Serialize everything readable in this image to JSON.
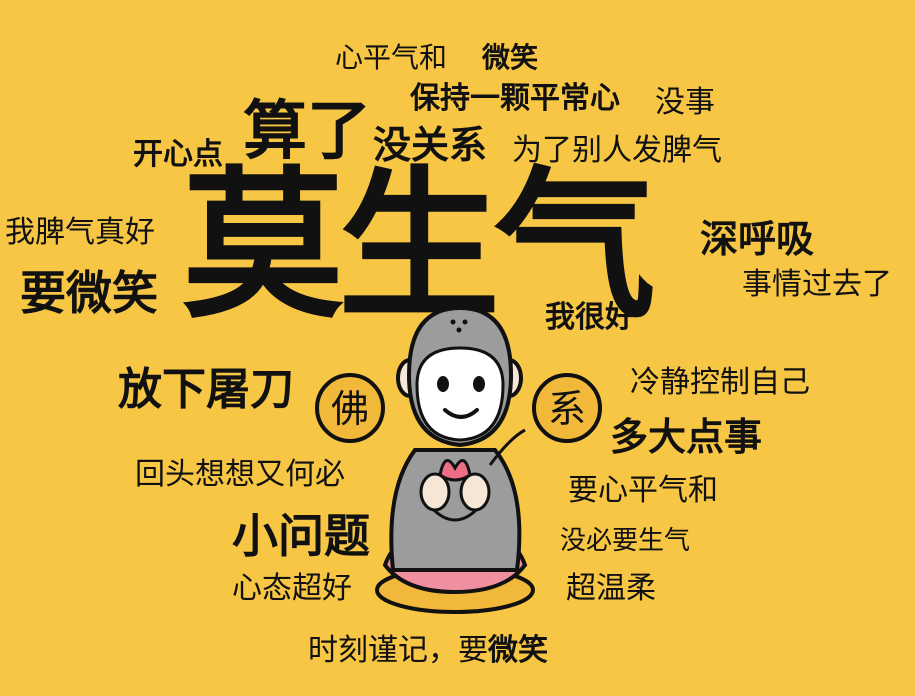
{
  "words": {
    "w1": "心平气和",
    "w2": "微笑",
    "w3": "保持一颗平常心",
    "w4": "没事",
    "w5": "开心点",
    "w6": "算了",
    "w7": "没关系",
    "w8": "为了别人发脾气",
    "w9": "莫生气",
    "w10": "我脾气真好",
    "w11": "深呼吸",
    "w12": "要微笑",
    "w13": "事情过去了",
    "w14": "我很好",
    "w15": "放下屠刀",
    "w16": "冷静控制自己",
    "w17": "多大点事",
    "w18": "回头想想又何必",
    "w19": "要心平气和",
    "w20": "小问题",
    "w21": "没必要生气",
    "w22": "心态超好",
    "w23": "超温柔"
  },
  "badges": {
    "left": "佛",
    "right": "系"
  },
  "footer": {
    "prefix": "时刻谨记，要",
    "emphasis": "微笑"
  },
  "colors": {
    "background": "#F7C644",
    "text": "#111111",
    "robe": "#9C9C9C",
    "lotus": "#F08FA0",
    "lotus_leaf": "#EE6E86",
    "base": "#F2B83A",
    "badge": "#F2B83A"
  }
}
